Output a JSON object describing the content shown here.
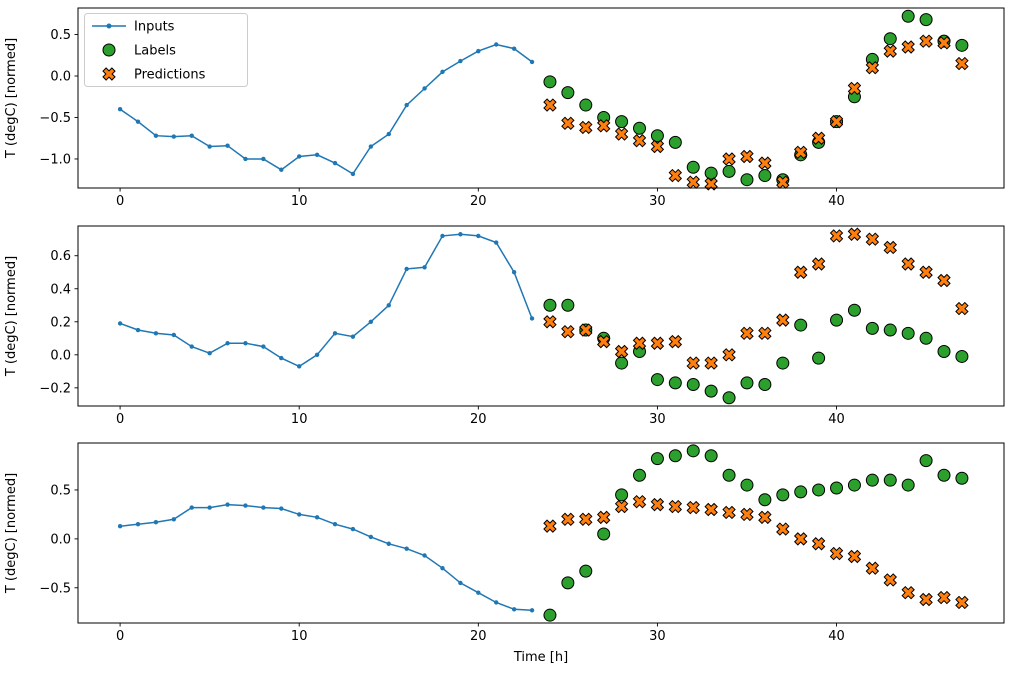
{
  "figure": {
    "xlabel": "Time [h]",
    "ylabel": "T (degC) [normed]",
    "legend": [
      "Inputs",
      "Labels",
      "Predictions"
    ],
    "colors": {
      "inputs": "#1f77b4",
      "labels": "#2ca02c",
      "predictions": "#ff7f0e",
      "marker_edge": "#000000",
      "legend_border": "#cccccc",
      "background": "#ffffff"
    }
  },
  "chart_data": [
    {
      "type": "line",
      "title": "",
      "xlabel": "",
      "ylabel": "T (degC) [normed]",
      "xlim": [
        -2.35,
        49.35
      ],
      "ylim": [
        -1.35,
        0.82
      ],
      "xticks": [
        0,
        10,
        20,
        30,
        40
      ],
      "xtick_labels": [
        "0",
        "10",
        "20",
        "30",
        "40"
      ],
      "yticks": [
        0.5,
        0.0,
        -0.5,
        -1.0
      ],
      "ytick_labels": [
        "0.5",
        "0.0",
        "−0.5",
        "−1.0"
      ],
      "series": [
        {
          "name": "Inputs",
          "type": "line",
          "color": "#1f77b4",
          "x": [
            0,
            1,
            2,
            3,
            4,
            5,
            6,
            7,
            8,
            9,
            10,
            11,
            12,
            13,
            14,
            15,
            16,
            17,
            18,
            19,
            20,
            21,
            22,
            23
          ],
          "y": [
            -0.4,
            -0.55,
            -0.72,
            -0.73,
            -0.72,
            -0.85,
            -0.84,
            -1.0,
            -1.0,
            -1.13,
            -0.97,
            -0.95,
            -1.05,
            -1.18,
            -0.85,
            -0.7,
            -0.35,
            -0.15,
            0.05,
            0.18,
            0.3,
            0.38,
            0.33,
            0.17
          ]
        },
        {
          "name": "Labels",
          "type": "scatter-circle",
          "color": "#2ca02c",
          "x": [
            24,
            25,
            26,
            27,
            28,
            29,
            30,
            31,
            32,
            33,
            34,
            35,
            36,
            37,
            38,
            39,
            40,
            41,
            42,
            43,
            44,
            45,
            46,
            47
          ],
          "y": [
            -0.07,
            -0.2,
            -0.35,
            -0.5,
            -0.55,
            -0.63,
            -0.72,
            -0.8,
            -1.1,
            -1.17,
            -1.15,
            -1.25,
            -1.2,
            -1.25,
            -0.95,
            -0.8,
            -0.55,
            -0.25,
            0.2,
            0.45,
            0.72,
            0.68,
            0.42,
            0.37
          ]
        },
        {
          "name": "Predictions",
          "type": "scatter-x",
          "color": "#ff7f0e",
          "x": [
            24,
            25,
            26,
            27,
            28,
            29,
            30,
            31,
            32,
            33,
            34,
            35,
            36,
            37,
            38,
            39,
            40,
            41,
            42,
            43,
            44,
            45,
            46,
            47
          ],
          "y": [
            -0.35,
            -0.57,
            -0.62,
            -0.6,
            -0.7,
            -0.78,
            -0.85,
            -1.2,
            -1.28,
            -1.3,
            -1.0,
            -0.97,
            -1.05,
            -1.28,
            -0.92,
            -0.75,
            -0.55,
            -0.15,
            0.1,
            0.3,
            0.35,
            0.42,
            0.4,
            0.15
          ]
        }
      ]
    },
    {
      "type": "line",
      "title": "",
      "xlabel": "",
      "ylabel": "T (degC) [normed]",
      "xlim": [
        -2.35,
        49.35
      ],
      "ylim": [
        -0.31,
        0.78
      ],
      "xticks": [
        0,
        10,
        20,
        30,
        40
      ],
      "xtick_labels": [
        "0",
        "10",
        "20",
        "30",
        "40"
      ],
      "yticks": [
        0.6,
        0.4,
        0.2,
        0.0,
        -0.2
      ],
      "ytick_labels": [
        "0.6",
        "0.4",
        "0.2",
        "0.0",
        "−0.2"
      ],
      "series": [
        {
          "name": "Inputs",
          "type": "line",
          "color": "#1f77b4",
          "x": [
            0,
            1,
            2,
            3,
            4,
            5,
            6,
            7,
            8,
            9,
            10,
            11,
            12,
            13,
            14,
            15,
            16,
            17,
            18,
            19,
            20,
            21,
            22,
            23
          ],
          "y": [
            0.19,
            0.15,
            0.13,
            0.12,
            0.05,
            0.01,
            0.07,
            0.07,
            0.05,
            -0.02,
            -0.07,
            0.0,
            0.13,
            0.11,
            0.2,
            0.3,
            0.52,
            0.53,
            0.72,
            0.73,
            0.72,
            0.68,
            0.5,
            0.22
          ]
        },
        {
          "name": "Labels",
          "type": "scatter-circle",
          "color": "#2ca02c",
          "x": [
            24,
            25,
            26,
            27,
            28,
            29,
            30,
            31,
            32,
            33,
            34,
            35,
            36,
            37,
            38,
            39,
            40,
            41,
            42,
            43,
            44,
            45,
            46,
            47
          ],
          "y": [
            0.3,
            0.3,
            0.15,
            0.1,
            -0.05,
            0.02,
            -0.15,
            -0.17,
            -0.18,
            -0.22,
            -0.26,
            -0.17,
            -0.18,
            -0.05,
            0.18,
            -0.02,
            0.21,
            0.27,
            0.16,
            0.15,
            0.13,
            0.1,
            0.02,
            -0.01
          ]
        },
        {
          "name": "Predictions",
          "type": "scatter-x",
          "color": "#ff7f0e",
          "x": [
            24,
            25,
            26,
            27,
            28,
            29,
            30,
            31,
            32,
            33,
            34,
            35,
            36,
            37,
            38,
            39,
            40,
            41,
            42,
            43,
            44,
            45,
            46,
            47
          ],
          "y": [
            0.2,
            0.14,
            0.15,
            0.08,
            0.02,
            0.07,
            0.07,
            0.08,
            -0.05,
            -0.05,
            0.0,
            0.13,
            0.13,
            0.21,
            0.5,
            0.55,
            0.72,
            0.73,
            0.7,
            0.65,
            0.55,
            0.5,
            0.45,
            0.28
          ]
        }
      ]
    },
    {
      "type": "line",
      "title": "",
      "xlabel": "Time [h]",
      "ylabel": "T (degC) [normed]",
      "xlim": [
        -2.35,
        49.35
      ],
      "ylim": [
        -0.86,
        0.98
      ],
      "xticks": [
        0,
        10,
        20,
        30,
        40
      ],
      "xtick_labels": [
        "0",
        "10",
        "20",
        "30",
        "40"
      ],
      "yticks": [
        0.5,
        0.0,
        -0.5
      ],
      "ytick_labels": [
        "0.5",
        "0.0",
        "−0.5"
      ],
      "series": [
        {
          "name": "Inputs",
          "type": "line",
          "color": "#1f77b4",
          "x": [
            0,
            1,
            2,
            3,
            4,
            5,
            6,
            7,
            8,
            9,
            10,
            11,
            12,
            13,
            14,
            15,
            16,
            17,
            18,
            19,
            20,
            21,
            22,
            23
          ],
          "y": [
            0.13,
            0.15,
            0.17,
            0.2,
            0.32,
            0.32,
            0.35,
            0.34,
            0.32,
            0.31,
            0.25,
            0.22,
            0.15,
            0.1,
            0.02,
            -0.05,
            -0.1,
            -0.17,
            -0.3,
            -0.45,
            -0.55,
            -0.65,
            -0.72,
            -0.73
          ]
        },
        {
          "name": "Labels",
          "type": "scatter-circle",
          "color": "#2ca02c",
          "x": [
            24,
            25,
            26,
            27,
            28,
            29,
            30,
            31,
            32,
            33,
            34,
            35,
            36,
            37,
            38,
            39,
            40,
            41,
            42,
            43,
            44,
            45,
            46,
            47
          ],
          "y": [
            -0.78,
            -0.45,
            -0.33,
            0.05,
            0.45,
            0.65,
            0.82,
            0.85,
            0.9,
            0.85,
            0.65,
            0.55,
            0.4,
            0.45,
            0.48,
            0.5,
            0.52,
            0.55,
            0.6,
            0.6,
            0.55,
            0.8,
            0.65,
            0.62
          ]
        },
        {
          "name": "Predictions",
          "type": "scatter-x",
          "color": "#ff7f0e",
          "x": [
            24,
            25,
            26,
            27,
            28,
            29,
            30,
            31,
            32,
            33,
            34,
            35,
            36,
            37,
            38,
            39,
            40,
            41,
            42,
            43,
            44,
            45,
            46,
            47
          ],
          "y": [
            0.13,
            0.2,
            0.2,
            0.22,
            0.33,
            0.38,
            0.35,
            0.33,
            0.32,
            0.3,
            0.27,
            0.25,
            0.22,
            0.1,
            0.0,
            -0.05,
            -0.15,
            -0.18,
            -0.3,
            -0.42,
            -0.55,
            -0.62,
            -0.6,
            -0.65
          ]
        }
      ]
    }
  ]
}
